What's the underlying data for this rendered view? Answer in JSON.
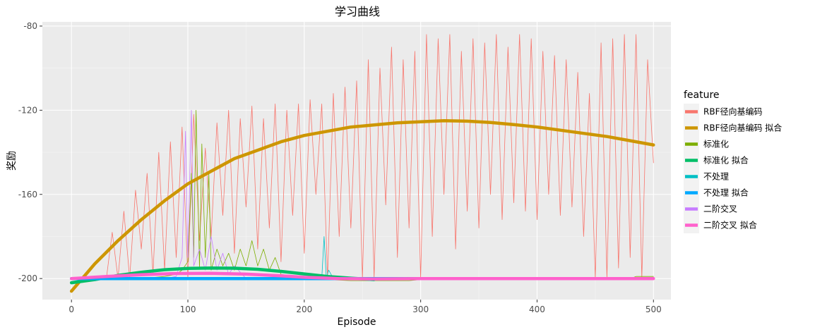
{
  "chart_data": {
    "type": "line",
    "title": "学习曲线",
    "xlabel": "Episode",
    "ylabel": "奖励",
    "xlim": [
      -25,
      515
    ],
    "ylim": [
      -210,
      -78
    ],
    "x_ticks": [
      0,
      100,
      200,
      300,
      400,
      500
    ],
    "y_ticks": [
      -200,
      -160,
      -120,
      -80
    ],
    "grid": true,
    "legend": {
      "title": "feature",
      "position": "right",
      "entries": [
        {
          "label": "RBF径向基编码",
          "color": "#F8766D"
        },
        {
          "label": "RBF径向基编码 拟合",
          "color": "#CD9600"
        },
        {
          "label": "标准化",
          "color": "#7CAE00"
        },
        {
          "label": "标准化 拟合",
          "color": "#00BE67"
        },
        {
          "label": "不处理",
          "color": "#00BFC4"
        },
        {
          "label": "不处理 拟合",
          "color": "#00A9FF"
        },
        {
          "label": "二阶交叉",
          "color": "#C77CFF"
        },
        {
          "label": "二阶交叉 拟合",
          "color": "#FF61CC"
        }
      ]
    },
    "series": [
      {
        "name": "RBF径向基编码",
        "color": "#F8766D",
        "style": "thin",
        "x": [
          0,
          10,
          20,
          30,
          35,
          40,
          45,
          50,
          55,
          60,
          65,
          70,
          75,
          80,
          85,
          90,
          95,
          100,
          105,
          110,
          115,
          120,
          125,
          130,
          135,
          140,
          145,
          150,
          155,
          160,
          165,
          170,
          175,
          180,
          185,
          190,
          195,
          200,
          205,
          210,
          215,
          220,
          225,
          230,
          235,
          240,
          245,
          250,
          255,
          260,
          265,
          270,
          275,
          280,
          285,
          290,
          295,
          300,
          305,
          310,
          315,
          320,
          325,
          330,
          335,
          340,
          345,
          350,
          355,
          360,
          365,
          370,
          375,
          380,
          385,
          390,
          395,
          400,
          405,
          410,
          415,
          420,
          425,
          430,
          435,
          440,
          445,
          450,
          455,
          460,
          465,
          470,
          475,
          480,
          485,
          490,
          495,
          500
        ],
        "y": [
          -200,
          -200,
          -200,
          -200,
          -178,
          -200,
          -168,
          -200,
          -158,
          -186,
          -150,
          -198,
          -140,
          -196,
          -135,
          -190,
          -128,
          -200,
          -122,
          -182,
          -138,
          -180,
          -126,
          -170,
          -120,
          -188,
          -124,
          -166,
          -118,
          -186,
          -124,
          -176,
          -117,
          -192,
          -120,
          -170,
          -117,
          -188,
          -115,
          -160,
          -117,
          -200,
          -112,
          -180,
          -109,
          -176,
          -106,
          -200,
          -96,
          -200,
          -100,
          -165,
          -90,
          -190,
          -96,
          -176,
          -92,
          -200,
          -84,
          -180,
          -86,
          -160,
          -84,
          -186,
          -92,
          -168,
          -86,
          -176,
          -88,
          -160,
          -84,
          -172,
          -90,
          -164,
          -84,
          -168,
          -86,
          -172,
          -92,
          -160,
          -94,
          -170,
          -96,
          -166,
          -102,
          -180,
          -112,
          -200,
          -88,
          -200,
          -86,
          -195,
          -84,
          -190,
          -84,
          -200,
          -96,
          -145
        ]
      },
      {
        "name": "RBF径向基编码 拟合",
        "color": "#CD9600",
        "style": "thick",
        "x": [
          0,
          20,
          40,
          60,
          80,
          100,
          120,
          140,
          160,
          180,
          200,
          220,
          240,
          260,
          280,
          300,
          320,
          340,
          360,
          380,
          400,
          420,
          440,
          460,
          480,
          500
        ],
        "y": [
          -206,
          -193,
          -182,
          -172,
          -163,
          -155,
          -149,
          -143,
          -139,
          -135,
          -132,
          -130,
          -128,
          -127,
          -126,
          -125.5,
          -125,
          -125.2,
          -125.8,
          -126.8,
          -128,
          -129.5,
          -131,
          -132.5,
          -134.5,
          -136.5
        ]
      },
      {
        "name": "标准化",
        "color": "#7CAE00",
        "style": "thin",
        "x": [
          0,
          20,
          40,
          60,
          80,
          90,
          95,
          100,
          103,
          105,
          107,
          110,
          112,
          115,
          118,
          120,
          125,
          130,
          135,
          140,
          145,
          150,
          155,
          160,
          165,
          170,
          175,
          180,
          200,
          240,
          270,
          290,
          310,
          350,
          400,
          450,
          480,
          485,
          490,
          500
        ],
        "y": [
          -200,
          -200,
          -200,
          -200,
          -199,
          -198,
          -196,
          -192,
          -150,
          -190,
          -120,
          -195,
          -136,
          -190,
          -150,
          -196,
          -186,
          -194,
          -188,
          -196,
          -186,
          -194,
          -182,
          -194,
          -186,
          -196,
          -190,
          -198,
          -200,
          -201,
          -201,
          -201,
          -200,
          -200,
          -200,
          -200,
          -200,
          -199,
          -199,
          -199
        ]
      },
      {
        "name": "标准化 拟合",
        "color": "#00BE67",
        "style": "thick",
        "x": [
          0,
          20,
          40,
          60,
          80,
          100,
          120,
          140,
          160,
          180,
          200,
          220,
          240,
          260
        ],
        "y": [
          -202,
          -200.5,
          -198.5,
          -197,
          -195.8,
          -195.2,
          -195,
          -195.1,
          -195.6,
          -196.6,
          -197.8,
          -199,
          -199.8,
          -200.5
        ]
      },
      {
        "name": "不处理",
        "color": "#00BFC4",
        "style": "thin",
        "x": [
          0,
          100,
          200,
          215,
          217,
          219,
          221,
          225,
          300,
          400,
          500
        ],
        "y": [
          -200,
          -200,
          -200,
          -200,
          -180,
          -200,
          -196,
          -200,
          -200,
          -200,
          -200
        ]
      },
      {
        "name": "不处理 拟合",
        "color": "#00A9FF",
        "style": "thick",
        "x": [
          0,
          100,
          200,
          300
        ],
        "y": [
          -200,
          -200,
          -200,
          -200
        ]
      },
      {
        "name": "二阶交叉",
        "color": "#C77CFF",
        "style": "thin",
        "x": [
          0,
          50,
          80,
          90,
          95,
          98,
          100,
          103,
          105,
          110,
          115,
          120,
          125,
          130,
          135,
          140,
          150,
          200,
          300,
          400,
          500
        ],
        "y": [
          -200,
          -200,
          -200,
          -199,
          -190,
          -130,
          -190,
          -120,
          -194,
          -186,
          -196,
          -180,
          -196,
          -188,
          -198,
          -194,
          -200,
          -200,
          -200,
          -200,
          -200
        ]
      },
      {
        "name": "二阶交叉 拟合",
        "color": "#FF61CC",
        "style": "thick",
        "x": [
          0,
          30,
          60,
          90,
          120,
          150,
          180,
          200,
          230,
          260,
          300,
          350,
          400,
          450,
          500
        ],
        "y": [
          -200,
          -199,
          -198.2,
          -197.6,
          -197.5,
          -197.9,
          -198.7,
          -199.4,
          -200,
          -200.2,
          -200,
          -200,
          -200,
          -200,
          -200
        ]
      }
    ]
  }
}
